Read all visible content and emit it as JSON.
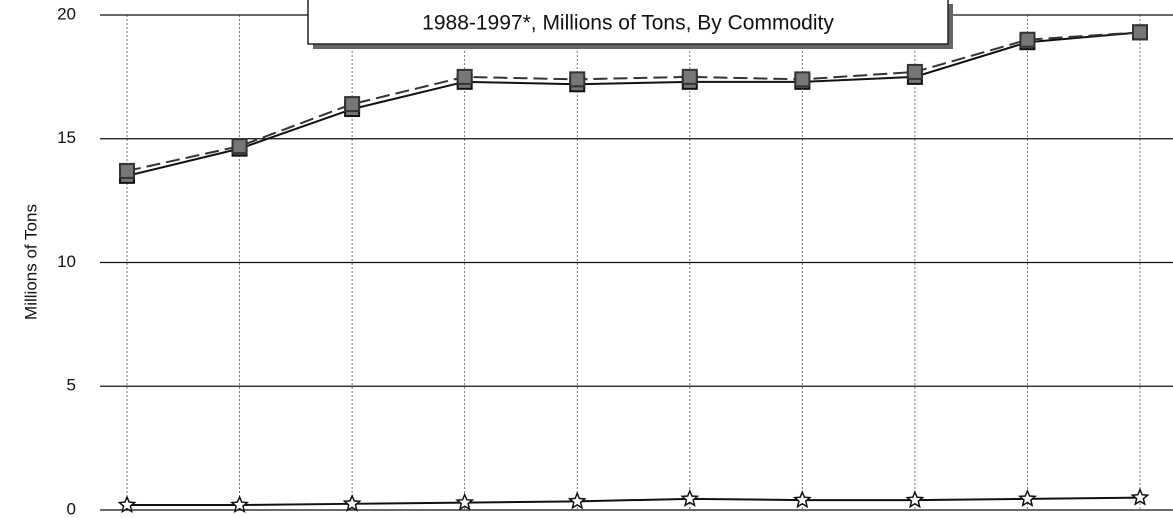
{
  "chart_data": {
    "type": "line",
    "title": "1988-1997*, Millions of Tons, By Commodity",
    "y_label": "Millions of Tons",
    "categories": [
      null,
      null,
      null,
      null,
      null,
      null,
      null,
      null,
      null,
      null
    ],
    "series": [
      {
        "color": "#111111",
        "dash": false,
        "marker": "square",
        "values": [
          13.5,
          14.6,
          16.2,
          17.3,
          17.2,
          17.3,
          17.3,
          17.5,
          18.9,
          19.3
        ]
      },
      {
        "color": "#333333",
        "dash": true,
        "marker": "square",
        "values": [
          13.7,
          14.7,
          16.4,
          17.5,
          17.4,
          17.5,
          17.4,
          17.7,
          19.0,
          19.3
        ]
      },
      {
        "color": "#111111",
        "dash": false,
        "marker": "star",
        "values": [
          0.2,
          0.2,
          0.25,
          0.3,
          0.35,
          0.45,
          0.4,
          0.4,
          0.45,
          0.5
        ]
      }
    ],
    "ylim": [
      0,
      20
    ],
    "yticks": [
      0,
      5,
      10,
      15,
      20
    ],
    "grid": true
  }
}
